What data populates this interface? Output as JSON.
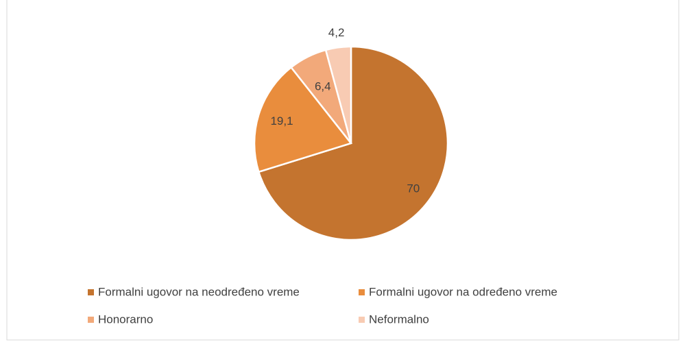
{
  "chart_data": {
    "type": "pie",
    "categories": [
      "Formalni ugovor na neodređeno vreme",
      "Formalni ugovor na određeno vreme",
      "Honorarno",
      "Neformalno"
    ],
    "values": [
      70,
      19.1,
      6.4,
      4.2
    ],
    "value_labels": [
      "70",
      "19,1",
      "6,4",
      "4,2"
    ],
    "colors": [
      "#c4742f",
      "#e98d3d",
      "#f2a97a",
      "#f8cbb3"
    ],
    "legend": "bottom"
  }
}
